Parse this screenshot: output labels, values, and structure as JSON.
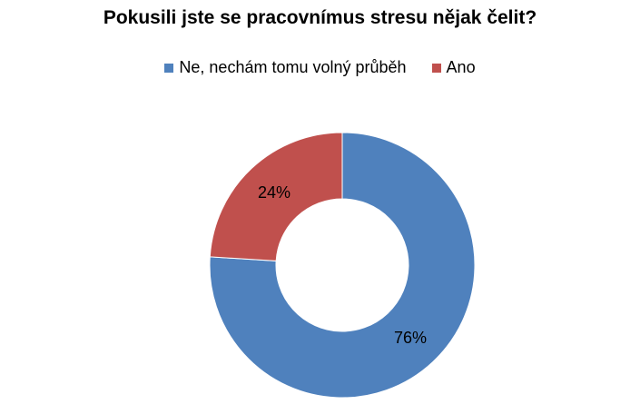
{
  "chart_data": {
    "type": "pie",
    "subtype": "doughnut",
    "title": "Pokusili jste se pracovnímus stresu nějak čelit?",
    "categories": [
      "Ne, nechám tomu volný průběh",
      "Ano"
    ],
    "values": [
      76,
      24
    ],
    "data_labels": [
      "76%",
      "24%"
    ],
    "colors": [
      "#4F81BD",
      "#C0504D"
    ],
    "legend_position": "top"
  }
}
